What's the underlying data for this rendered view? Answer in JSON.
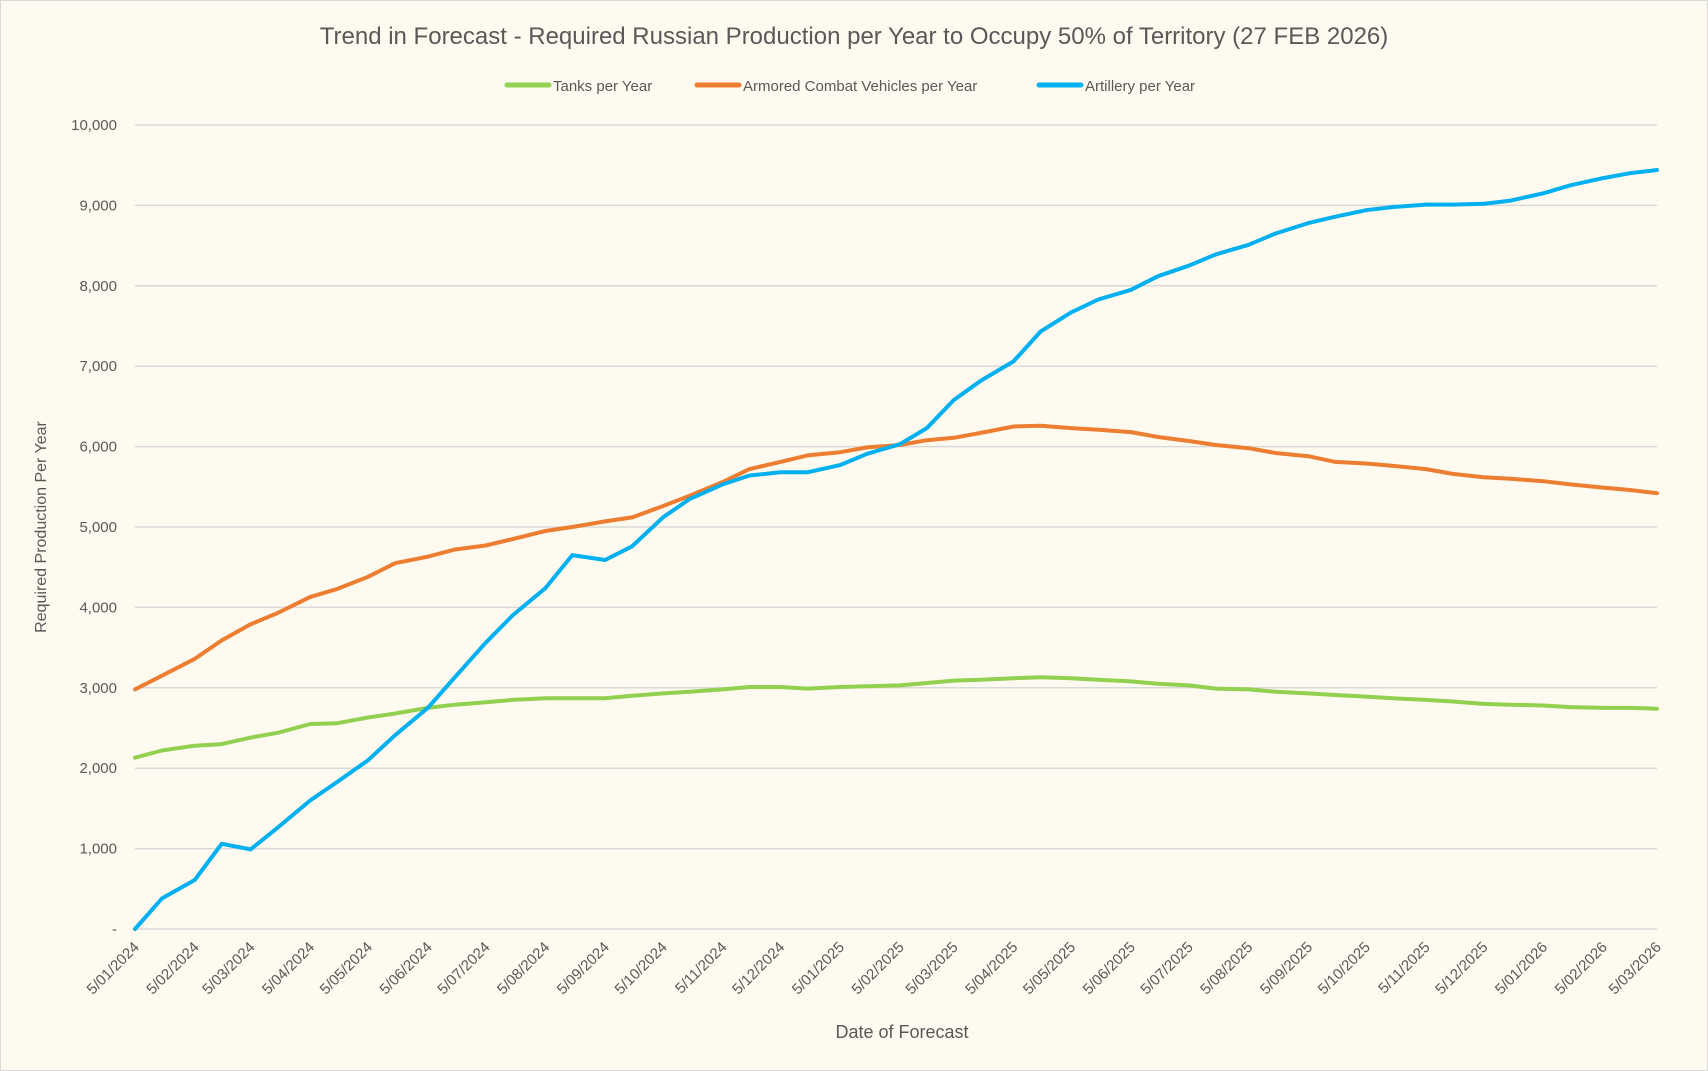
{
  "chart_data": {
    "type": "line",
    "title": "Trend in Forecast - Required Russian Production per Year to Occupy 50% of Territory (27 FEB 2026)",
    "xlabel": "Date of Forecast",
    "ylabel": "Required Production Per Year",
    "ylim": [
      0,
      10000
    ],
    "y_ticks": [
      "-",
      "1,000",
      "2,000",
      "3,000",
      "4,000",
      "5,000",
      "6,000",
      "7,000",
      "8,000",
      "9,000",
      "10,000"
    ],
    "x_ticks": [
      "5/01/2024",
      "5/02/2024",
      "5/03/2024",
      "5/04/2024",
      "5/05/2024",
      "5/06/2024",
      "5/07/2024",
      "5/08/2024",
      "5/09/2024",
      "5/10/2024",
      "5/11/2024",
      "5/12/2024",
      "5/01/2025",
      "5/02/2025",
      "5/03/2025",
      "5/04/2025",
      "5/05/2025",
      "5/06/2025",
      "5/07/2025",
      "5/08/2025",
      "5/09/2025",
      "5/10/2025",
      "5/11/2025",
      "5/12/2025",
      "5/01/2026",
      "5/02/2026",
      "5/03/2026"
    ],
    "grid": "horizontal",
    "legend": "top",
    "x": [
      "2024-01-05",
      "2024-01-19",
      "2024-02-05",
      "2024-02-19",
      "2024-03-05",
      "2024-03-19",
      "2024-04-05",
      "2024-04-19",
      "2024-05-05",
      "2024-05-19",
      "2024-06-05",
      "2024-06-19",
      "2024-07-05",
      "2024-07-19",
      "2024-08-05",
      "2024-08-19",
      "2024-09-05",
      "2024-09-19",
      "2024-10-05",
      "2024-10-19",
      "2024-11-05",
      "2024-11-19",
      "2024-12-05",
      "2024-12-19",
      "2025-01-05",
      "2025-01-19",
      "2025-02-05",
      "2025-02-19",
      "2025-03-05",
      "2025-03-19",
      "2025-04-05",
      "2025-04-19",
      "2025-05-05",
      "2025-05-19",
      "2025-06-05",
      "2025-06-19",
      "2025-07-05",
      "2025-07-19",
      "2025-08-05",
      "2025-08-19",
      "2025-09-05",
      "2025-09-19",
      "2025-10-05",
      "2025-10-19",
      "2025-11-05",
      "2025-11-19",
      "2025-12-05",
      "2025-12-19",
      "2026-01-05",
      "2026-01-19",
      "2026-02-05",
      "2026-02-19",
      "2026-03-05"
    ],
    "series": [
      {
        "name": "Tanks per Year",
        "color": "#92d050",
        "values": [
          2130,
          2220,
          2280,
          2300,
          2380,
          2440,
          2550,
          2560,
          2630,
          2680,
          2750,
          2790,
          2820,
          2850,
          2870,
          2870,
          2870,
          2900,
          2930,
          2950,
          2980,
          3010,
          3010,
          2990,
          3010,
          3020,
          3030,
          3060,
          3090,
          3100,
          3120,
          3130,
          3120,
          3100,
          3080,
          3050,
          3030,
          2990,
          2980,
          2950,
          2930,
          2910,
          2890,
          2870,
          2850,
          2830,
          2800,
          2790,
          2780,
          2760,
          2750,
          2750,
          2740
        ]
      },
      {
        "name": "Armored Combat Vehicles per Year",
        "color": "#ed7d31",
        "values": [
          2980,
          3150,
          3360,
          3590,
          3790,
          3930,
          4130,
          4230,
          4380,
          4550,
          4630,
          4720,
          4770,
          4850,
          4950,
          5000,
          5070,
          5120,
          5260,
          5390,
          5560,
          5720,
          5810,
          5890,
          5930,
          5990,
          6020,
          6080,
          6110,
          6170,
          6250,
          6260,
          6230,
          6210,
          6180,
          6120,
          6070,
          6020,
          5980,
          5920,
          5880,
          5810,
          5790,
          5760,
          5720,
          5660,
          5620,
          5600,
          5570,
          5530,
          5490,
          5460,
          5420
        ]
      },
      {
        "name": "Artillery per Year",
        "color": "#00b0f0",
        "values": [
          0,
          380,
          610,
          1060,
          990,
          1260,
          1600,
          1830,
          2100,
          2410,
          2750,
          3130,
          3560,
          3900,
          4240,
          4650,
          4590,
          4760,
          5120,
          5350,
          5530,
          5640,
          5680,
          5680,
          5770,
          5910,
          6030,
          6230,
          6580,
          6820,
          7060,
          7430,
          7670,
          7830,
          7950,
          8120,
          8250,
          8390,
          8510,
          8650,
          8780,
          8860,
          8940,
          8980,
          9010,
          9010,
          9020,
          9060,
          9150,
          9250,
          9340,
          9400,
          9440
        ]
      }
    ]
  }
}
